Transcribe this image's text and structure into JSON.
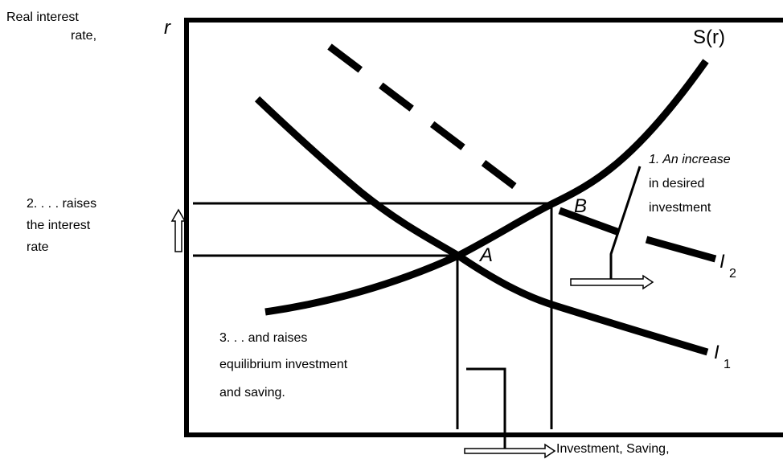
{
  "y_axis": {
    "label": [
      "Real interest",
      "rate,"
    ],
    "symbol": "r"
  },
  "x_axis": {
    "label": "Investment, Saving,"
  },
  "curves": {
    "saving": "S(r)",
    "i1": {
      "name": "I",
      "subscript": "1"
    },
    "i2": {
      "name": "I",
      "subscript": "2"
    }
  },
  "points": {
    "a": "A",
    "b": "B"
  },
  "notes": {
    "step1": [
      "1. An increase",
      "in desired",
      "investment"
    ],
    "step2": [
      "2. . . . raises",
      "the interest",
      "rate"
    ],
    "step3": [
      "3. .   . and raises",
      "equilibrium investment",
      "and saving."
    ]
  }
}
